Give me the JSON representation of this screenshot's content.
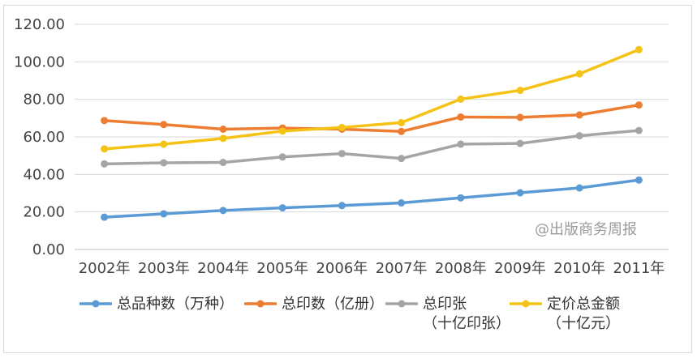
{
  "watermark": "@出版商务周报",
  "chart_data": {
    "type": "line",
    "categories": [
      "2002年",
      "2003年",
      "2004年",
      "2005年",
      "2006年",
      "2007年",
      "2008年",
      "2009年",
      "2010年",
      "2011年"
    ],
    "ylim": [
      0,
      120
    ],
    "yticks": [
      0,
      20,
      40,
      60,
      80,
      100,
      120
    ],
    "ytick_labels": [
      "0.00",
      "20.00",
      "40.00",
      "60.00",
      "80.00",
      "100.00",
      "120.00"
    ],
    "grid": true,
    "legend_position": "bottom",
    "series": [
      {
        "name": "总品种数（万种）",
        "legend_lines": [
          "总品种数（万种）"
        ],
        "color": "#5b9bd5",
        "values": [
          17.2,
          19.0,
          20.8,
          22.2,
          23.4,
          24.8,
          27.5,
          30.2,
          32.8,
          37.0
        ]
      },
      {
        "name": "总印数（亿册）",
        "legend_lines": [
          "总印数（亿册）"
        ],
        "color": "#ed7d31",
        "values": [
          68.7,
          66.6,
          64.1,
          64.7,
          64.1,
          62.9,
          70.6,
          70.4,
          71.7,
          77.0
        ]
      },
      {
        "name": "总印张（十亿印张）",
        "legend_lines": [
          "总印张",
          "（十亿印张）"
        ],
        "color": "#a5a5a5",
        "values": [
          45.6,
          46.2,
          46.4,
          49.3,
          51.1,
          48.5,
          56.1,
          56.5,
          60.6,
          63.4
        ]
      },
      {
        "name": "定价总金额（十亿元）",
        "legend_lines": [
          "定价总金额",
          "（十亿元）"
        ],
        "color": "#f5c216",
        "values": [
          53.6,
          56.1,
          59.2,
          63.1,
          65.0,
          67.6,
          80.1,
          84.8,
          93.6,
          106.5
        ]
      }
    ]
  }
}
